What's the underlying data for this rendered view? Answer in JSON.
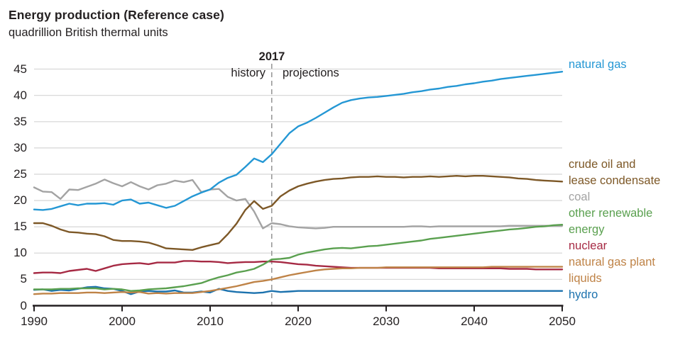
{
  "title": "Energy production (Reference case)",
  "subtitle": "quadrillion British thermal units",
  "annotations": {
    "divider_year_label": "2017",
    "left_label": "history",
    "right_label": "projections"
  },
  "axes": {
    "y_ticks": [
      0,
      5,
      10,
      15,
      20,
      25,
      30,
      35,
      40,
      45
    ],
    "x_ticks": [
      1990,
      2000,
      2010,
      2020,
      2030,
      2040,
      2050
    ]
  },
  "colors": {
    "axis": "#231f20",
    "text": "#231f20",
    "gridline": "#d9d9d9",
    "divider": "#9a9a9a",
    "background": "#ffffff"
  },
  "chart_data": {
    "type": "line",
    "title": "Energy production (Reference case)",
    "ylabel": "quadrillion British thermal units",
    "xlabel": "",
    "x_range": [
      1990,
      2050
    ],
    "ylim": [
      0,
      45
    ],
    "grid": true,
    "divider_x": 2017,
    "years_start": 1990,
    "series": [
      {
        "id": "natural-gas",
        "name": "natural gas",
        "color": "#2497d4",
        "label_lines": [
          "natural gas"
        ],
        "values": [
          18.3,
          18.2,
          18.4,
          18.9,
          19.4,
          19.1,
          19.4,
          19.4,
          19.5,
          19.2,
          20.0,
          20.2,
          19.4,
          19.6,
          19.1,
          18.6,
          19.0,
          19.9,
          20.8,
          21.5,
          22.1,
          23.4,
          24.3,
          24.9,
          26.4,
          28.0,
          27.3,
          28.8,
          30.8,
          32.8,
          34.1,
          34.8,
          35.7,
          36.7,
          37.7,
          38.6,
          39.1,
          39.4,
          39.6,
          39.7,
          39.9,
          40.1,
          40.3,
          40.6,
          40.8,
          41.1,
          41.3,
          41.6,
          41.8,
          42.1,
          42.3,
          42.6,
          42.8,
          43.1,
          43.3,
          43.5,
          43.7,
          43.9,
          44.1,
          44.3,
          44.5
        ]
      },
      {
        "id": "crude-oil",
        "name": "crude oil and lease condensate",
        "color": "#7d5827",
        "label_lines": [
          "crude oil and",
          "lease condensate"
        ],
        "values": [
          15.7,
          15.7,
          15.2,
          14.5,
          14.0,
          13.9,
          13.7,
          13.6,
          13.2,
          12.5,
          12.3,
          12.3,
          12.2,
          12.0,
          11.5,
          10.9,
          10.8,
          10.7,
          10.6,
          11.1,
          11.5,
          11.9,
          13.6,
          15.6,
          18.2,
          19.9,
          18.4,
          19.0,
          20.8,
          21.9,
          22.7,
          23.2,
          23.6,
          23.9,
          24.1,
          24.2,
          24.4,
          24.5,
          24.5,
          24.6,
          24.5,
          24.5,
          24.4,
          24.5,
          24.5,
          24.6,
          24.5,
          24.6,
          24.7,
          24.6,
          24.7,
          24.7,
          24.6,
          24.5,
          24.4,
          24.2,
          24.1,
          23.9,
          23.8,
          23.7,
          23.6
        ]
      },
      {
        "id": "coal",
        "name": "coal",
        "color": "#a3a3a3",
        "label_lines": [
          "coal"
        ],
        "values": [
          22.5,
          21.7,
          21.6,
          20.3,
          22.1,
          22.0,
          22.6,
          23.2,
          24.0,
          23.3,
          22.7,
          23.5,
          22.7,
          22.1,
          22.9,
          23.2,
          23.8,
          23.5,
          23.9,
          21.6,
          22.1,
          22.2,
          20.7,
          20.0,
          20.3,
          17.9,
          14.7,
          15.7,
          15.5,
          15.1,
          14.9,
          14.8,
          14.7,
          14.8,
          15.0,
          15.0,
          15.0,
          15.0,
          15.0,
          15.0,
          15.0,
          15.0,
          15.0,
          15.1,
          15.1,
          15.0,
          15.1,
          15.1,
          15.1,
          15.1,
          15.1,
          15.1,
          15.1,
          15.1,
          15.2,
          15.2,
          15.2,
          15.2,
          15.2,
          15.2,
          15.2
        ]
      },
      {
        "id": "other-renewable-energy",
        "name": "other renewable energy",
        "color": "#5aa04f",
        "label_lines": [
          "other renewable",
          "energy"
        ],
        "values": [
          3.1,
          3.1,
          3.1,
          3.2,
          3.2,
          3.3,
          3.3,
          3.3,
          3.1,
          3.2,
          3.1,
          2.8,
          2.9,
          3.1,
          3.2,
          3.3,
          3.5,
          3.7,
          4.0,
          4.3,
          4.9,
          5.4,
          5.8,
          6.3,
          6.6,
          7.0,
          7.8,
          8.8,
          8.9,
          9.1,
          9.7,
          10.1,
          10.4,
          10.7,
          10.9,
          11.0,
          10.9,
          11.1,
          11.3,
          11.4,
          11.6,
          11.8,
          12.0,
          12.2,
          12.4,
          12.7,
          12.9,
          13.1,
          13.3,
          13.5,
          13.7,
          13.9,
          14.1,
          14.3,
          14.5,
          14.6,
          14.8,
          15.0,
          15.1,
          15.3,
          15.4
        ]
      },
      {
        "id": "nuclear",
        "name": "nuclear",
        "color": "#a62a44",
        "label_lines": [
          "nuclear"
        ],
        "values": [
          6.2,
          6.3,
          6.3,
          6.2,
          6.6,
          6.8,
          7.0,
          6.6,
          7.1,
          7.6,
          7.9,
          8.0,
          8.1,
          7.9,
          8.2,
          8.2,
          8.2,
          8.5,
          8.5,
          8.4,
          8.4,
          8.3,
          8.1,
          8.2,
          8.3,
          8.3,
          8.4,
          8.4,
          8.3,
          8.1,
          7.9,
          7.8,
          7.6,
          7.5,
          7.4,
          7.3,
          7.2,
          7.2,
          7.2,
          7.2,
          7.2,
          7.2,
          7.2,
          7.2,
          7.2,
          7.2,
          7.1,
          7.1,
          7.1,
          7.1,
          7.1,
          7.1,
          7.1,
          7.1,
          7.0,
          7.0,
          7.0,
          6.9,
          6.9,
          6.9,
          6.9
        ]
      },
      {
        "id": "natural-gas-plant-liquids",
        "name": "natural gas plant liquids",
        "color": "#bf8347",
        "label_lines": [
          "natural gas plant",
          "liquids"
        ],
        "values": [
          2.2,
          2.3,
          2.3,
          2.4,
          2.4,
          2.4,
          2.5,
          2.5,
          2.4,
          2.5,
          2.6,
          2.5,
          2.6,
          2.3,
          2.4,
          2.3,
          2.4,
          2.4,
          2.4,
          2.6,
          2.8,
          3.1,
          3.4,
          3.7,
          4.1,
          4.5,
          4.7,
          5.0,
          5.4,
          5.8,
          6.1,
          6.4,
          6.7,
          6.9,
          7.0,
          7.1,
          7.1,
          7.2,
          7.2,
          7.2,
          7.3,
          7.3,
          7.3,
          7.3,
          7.3,
          7.3,
          7.3,
          7.3,
          7.3,
          7.3,
          7.3,
          7.3,
          7.4,
          7.4,
          7.4,
          7.4,
          7.4,
          7.4,
          7.4,
          7.4,
          7.4
        ]
      },
      {
        "id": "hydro",
        "name": "hydro",
        "color": "#1c72ae",
        "label_lines": [
          "hydro"
        ],
        "values": [
          3.0,
          3.1,
          2.8,
          3.0,
          2.9,
          3.2,
          3.5,
          3.6,
          3.3,
          3.2,
          2.8,
          2.2,
          2.7,
          2.8,
          2.7,
          2.7,
          2.9,
          2.5,
          2.5,
          2.7,
          2.5,
          3.2,
          2.8,
          2.6,
          2.5,
          2.4,
          2.5,
          2.8,
          2.6,
          2.7,
          2.8,
          2.8,
          2.8,
          2.8,
          2.8,
          2.8,
          2.8,
          2.8,
          2.8,
          2.8,
          2.8,
          2.8,
          2.8,
          2.8,
          2.8,
          2.8,
          2.8,
          2.8,
          2.8,
          2.8,
          2.8,
          2.8,
          2.8,
          2.8,
          2.8,
          2.8,
          2.8,
          2.8,
          2.8,
          2.8,
          2.8
        ]
      }
    ]
  }
}
